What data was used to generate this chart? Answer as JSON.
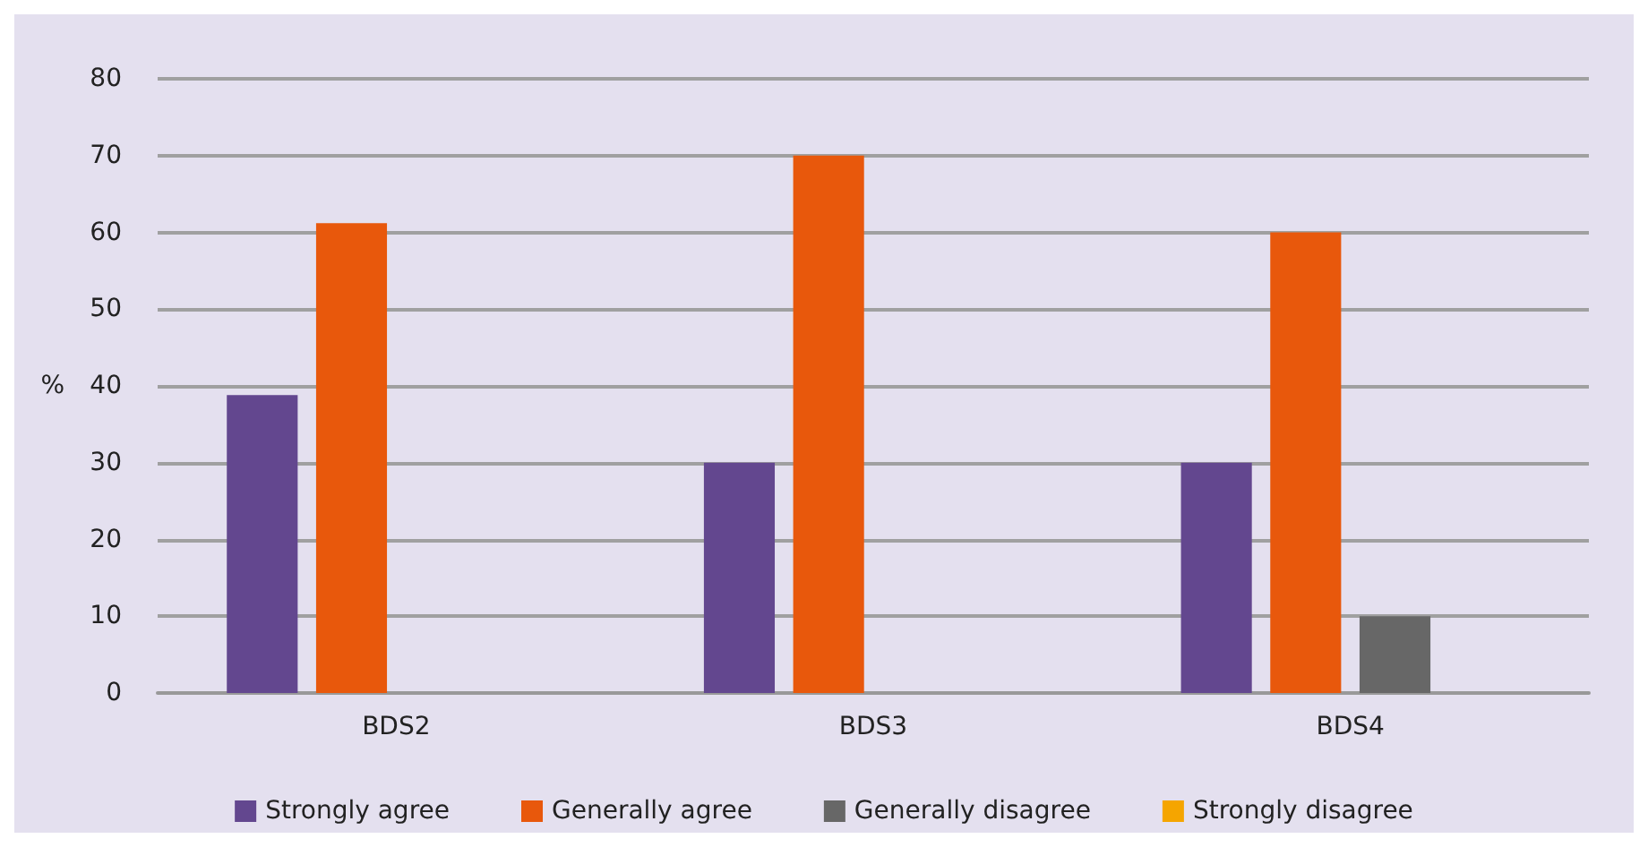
{
  "chart_data": {
    "type": "bar",
    "ylabel": "%",
    "categories": [
      "BDS2",
      "BDS3",
      "BDS4"
    ],
    "series": [
      {
        "name": "Strongly agree",
        "color": "#63478f",
        "values": [
          38.8,
          30,
          30
        ]
      },
      {
        "name": "Generally agree",
        "color": "#e8580c",
        "values": [
          61.2,
          70,
          60
        ]
      },
      {
        "name": "Generally disagree",
        "color": "#676767",
        "values": [
          0,
          0,
          10
        ]
      },
      {
        "name": "Strongly disagree",
        "color": "#f5a500",
        "values": [
          0,
          0,
          0
        ]
      }
    ],
    "ylim": [
      0,
      80
    ],
    "yticks": [
      0,
      10,
      20,
      30,
      40,
      50,
      60,
      70,
      80
    ],
    "grid": "y",
    "legend": "bottom"
  }
}
